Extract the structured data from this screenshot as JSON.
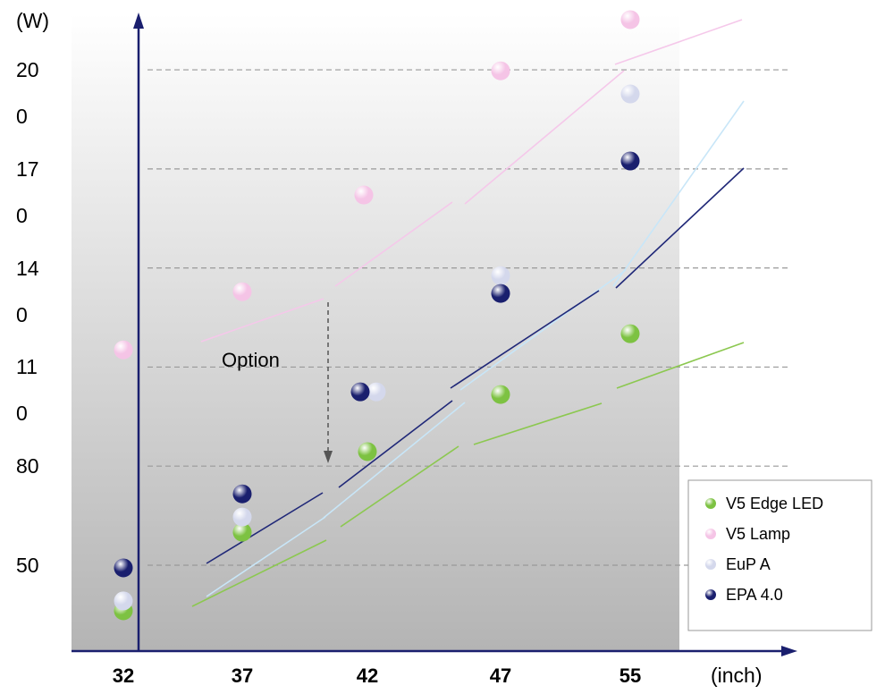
{
  "chart_data": {
    "type": "scatter",
    "y_label": "(W)",
    "x_label": "(inch)",
    "annotation": "Option",
    "categories": [
      "32",
      "37",
      "42",
      "47",
      "55"
    ],
    "ylim": [
      24,
      216
    ],
    "yticks": [
      200,
      170,
      140,
      110,
      80,
      50
    ],
    "grid": true,
    "legend": "lower right",
    "series": [
      {
        "name": "V5 Edge LED",
        "color": "#7dc242",
        "values": [
          36.2,
          60,
          84.4,
          101.7,
          120.1
        ]
      },
      {
        "name": "V5 Lamp",
        "color": "#f5c4e6",
        "values": [
          115.2,
          132.8,
          162.1,
          199.7,
          215.2
        ]
      },
      {
        "name": "EuP A",
        "color": "#d4d8ec",
        "values": [
          39.2,
          64.6,
          102.5,
          137.7,
          192.7
        ]
      },
      {
        "name": "EPA 4.0",
        "color": "#1a1f6e",
        "values": [
          49.2,
          71.6,
          102.5,
          132.3,
          172.4
        ]
      }
    ]
  }
}
